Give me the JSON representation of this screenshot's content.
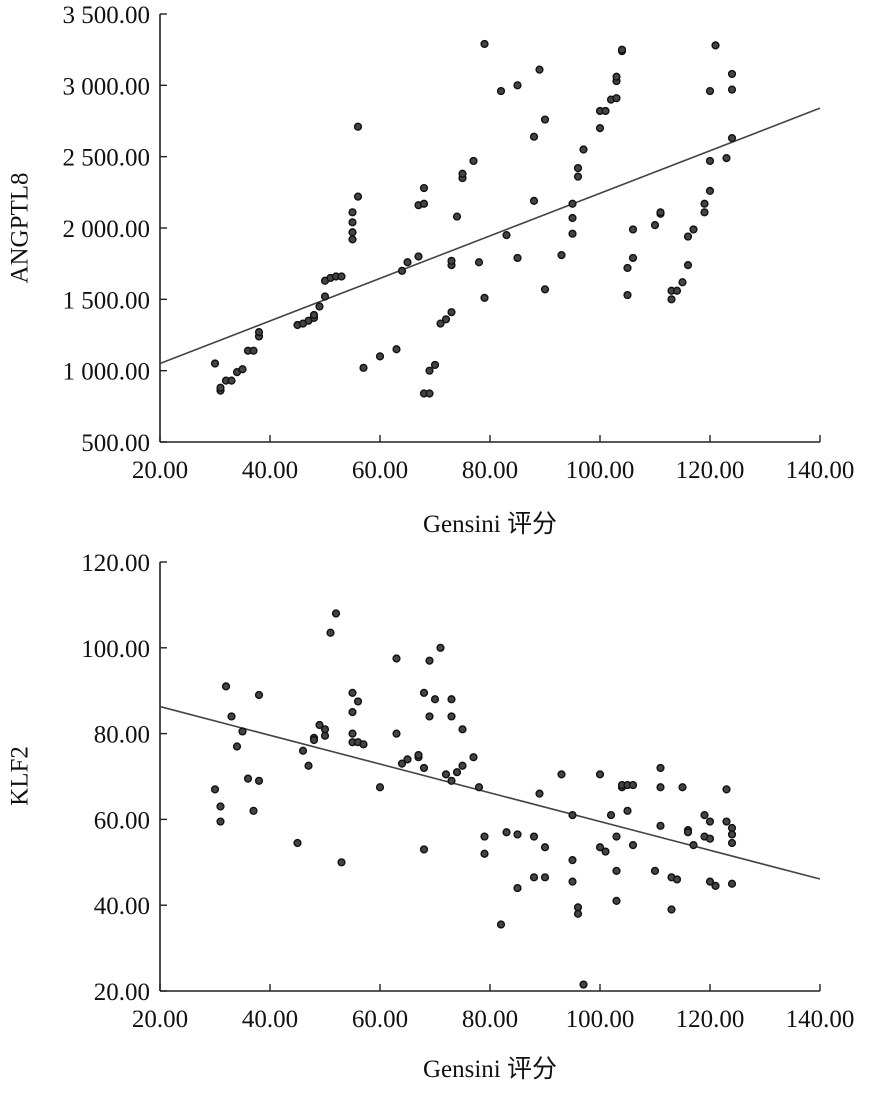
{
  "chart_data": [
    {
      "type": "scatter",
      "title": "",
      "xlabel": "Gensini 评分",
      "ylabel": "ANGPTL8",
      "xlim": [
        20,
        140
      ],
      "ylim": [
        500,
        3500
      ],
      "xticks": [
        20,
        40,
        60,
        80,
        100,
        120,
        140
      ],
      "yticks": [
        500,
        1000,
        1500,
        2000,
        2500,
        3000,
        3500
      ],
      "xtick_labels": [
        "20.00",
        "40.00",
        "60.00",
        "80.00",
        "100.00",
        "120.00",
        "140.00"
      ],
      "ytick_labels": [
        "500.00",
        "1 000.00",
        "1 500.00",
        "2 000.00",
        "2 500.00",
        "3 000.00",
        "3 500.00"
      ],
      "fit_line": {
        "x": [
          20,
          140
        ],
        "y": [
          1050,
          2840
        ]
      },
      "points": [
        [
          30,
          1050
        ],
        [
          31,
          860
        ],
        [
          31,
          880
        ],
        [
          32,
          930
        ],
        [
          33,
          930
        ],
        [
          34,
          990
        ],
        [
          35,
          1010
        ],
        [
          36,
          1140
        ],
        [
          37,
          1140
        ],
        [
          38,
          1240
        ],
        [
          38,
          1270
        ],
        [
          45,
          1320
        ],
        [
          46,
          1330
        ],
        [
          47,
          1350
        ],
        [
          48,
          1370
        ],
        [
          48,
          1390
        ],
        [
          49,
          1450
        ],
        [
          50,
          1520
        ],
        [
          50,
          1630
        ],
        [
          51,
          1650
        ],
        [
          52,
          1660
        ],
        [
          53,
          1660
        ],
        [
          55,
          1920
        ],
        [
          55,
          1970
        ],
        [
          55,
          2040
        ],
        [
          55,
          2110
        ],
        [
          56,
          2220
        ],
        [
          56,
          2710
        ],
        [
          57,
          1020
        ],
        [
          60,
          1100
        ],
        [
          63,
          1150
        ],
        [
          64,
          1700
        ],
        [
          65,
          1760
        ],
        [
          67,
          1800
        ],
        [
          67,
          2160
        ],
        [
          68,
          2170
        ],
        [
          68,
          2280
        ],
        [
          68,
          840
        ],
        [
          69,
          840
        ],
        [
          69,
          1000
        ],
        [
          70,
          1040
        ],
        [
          71,
          1330
        ],
        [
          72,
          1360
        ],
        [
          73,
          1410
        ],
        [
          73,
          1740
        ],
        [
          73,
          1770
        ],
        [
          74,
          2080
        ],
        [
          75,
          2350
        ],
        [
          75,
          2380
        ],
        [
          77,
          2470
        ],
        [
          78,
          1760
        ],
        [
          79,
          1510
        ],
        [
          79,
          3290
        ],
        [
          82,
          2960
        ],
        [
          83,
          1950
        ],
        [
          85,
          1790
        ],
        [
          85,
          3000
        ],
        [
          88,
          2640
        ],
        [
          88,
          2190
        ],
        [
          89,
          3110
        ],
        [
          90,
          1570
        ],
        [
          90,
          2760
        ],
        [
          93,
          1810
        ],
        [
          95,
          1960
        ],
        [
          95,
          2070
        ],
        [
          95,
          2170
        ],
        [
          96,
          2360
        ],
        [
          96,
          2420
        ],
        [
          97,
          2550
        ],
        [
          100,
          2700
        ],
        [
          100,
          2820
        ],
        [
          101,
          2820
        ],
        [
          102,
          2900
        ],
        [
          103,
          2910
        ],
        [
          103,
          3030
        ],
        [
          103,
          3060
        ],
        [
          104,
          3240
        ],
        [
          104,
          3250
        ],
        [
          105,
          1530
        ],
        [
          105,
          1720
        ],
        [
          106,
          1790
        ],
        [
          106,
          1990
        ],
        [
          110,
          2020
        ],
        [
          111,
          2100
        ],
        [
          111,
          2110
        ],
        [
          113,
          1500
        ],
        [
          113,
          1560
        ],
        [
          114,
          1560
        ],
        [
          115,
          1620
        ],
        [
          116,
          1740
        ],
        [
          116,
          1940
        ],
        [
          117,
          1990
        ],
        [
          119,
          2110
        ],
        [
          119,
          2170
        ],
        [
          120,
          2260
        ],
        [
          120,
          2470
        ],
        [
          120,
          2960
        ],
        [
          121,
          3280
        ],
        [
          123,
          2490
        ],
        [
          124,
          2630
        ],
        [
          124,
          2970
        ],
        [
          124,
          3080
        ]
      ]
    },
    {
      "type": "scatter",
      "title": "",
      "xlabel": "Gensini 评分",
      "ylabel": "KLF2",
      "xlim": [
        20,
        140
      ],
      "ylim": [
        20,
        120
      ],
      "xticks": [
        20,
        40,
        60,
        80,
        100,
        120,
        140
      ],
      "yticks": [
        20,
        40,
        60,
        80,
        100,
        120
      ],
      "xtick_labels": [
        "20.00",
        "40.00",
        "60.00",
        "80.00",
        "100.00",
        "120.00",
        "140.00"
      ],
      "ytick_labels": [
        "20.00",
        "40.00",
        "60.00",
        "80.00",
        "100.00",
        "120.00"
      ],
      "fit_line": {
        "x": [
          20,
          140
        ],
        "y": [
          86.3,
          46.1
        ]
      },
      "points": [
        [
          30,
          67
        ],
        [
          31,
          63
        ],
        [
          31,
          59.5
        ],
        [
          32,
          91
        ],
        [
          33,
          84
        ],
        [
          34,
          77
        ],
        [
          35,
          80.5
        ],
        [
          36,
          69.5
        ],
        [
          37,
          62
        ],
        [
          38,
          89
        ],
        [
          38,
          69
        ],
        [
          45,
          54.5
        ],
        [
          46,
          76
        ],
        [
          47,
          72.5
        ],
        [
          48,
          79
        ],
        [
          48,
          78.5
        ],
        [
          49,
          82
        ],
        [
          50,
          81
        ],
        [
          50,
          79.5
        ],
        [
          51,
          103.5
        ],
        [
          52,
          108
        ],
        [
          53,
          50
        ],
        [
          55,
          89.5
        ],
        [
          55,
          85
        ],
        [
          55,
          80
        ],
        [
          55,
          78
        ],
        [
          56,
          87.5
        ],
        [
          56,
          78
        ],
        [
          57,
          77.5
        ],
        [
          60,
          67.5
        ],
        [
          63,
          97.5
        ],
        [
          63,
          80
        ],
        [
          64,
          73
        ],
        [
          65,
          74
        ],
        [
          67,
          74.5
        ],
        [
          67,
          75
        ],
        [
          68,
          72
        ],
        [
          68,
          89.5
        ],
        [
          68,
          53
        ],
        [
          69,
          97
        ],
        [
          69,
          84
        ],
        [
          70,
          88
        ],
        [
          71,
          100
        ],
        [
          72,
          70.5
        ],
        [
          73,
          69
        ],
        [
          73,
          84
        ],
        [
          73,
          88
        ],
        [
          74,
          71
        ],
        [
          75,
          72.5
        ],
        [
          75,
          81
        ],
        [
          77,
          74.5
        ],
        [
          78,
          67.5
        ],
        [
          79,
          56
        ],
        [
          79,
          52
        ],
        [
          82,
          35.5
        ],
        [
          83,
          57
        ],
        [
          85,
          56.5
        ],
        [
          85,
          44
        ],
        [
          88,
          56
        ],
        [
          88,
          46.5
        ],
        [
          89,
          66
        ],
        [
          90,
          46.5
        ],
        [
          90,
          53.5
        ],
        [
          93,
          70.5
        ],
        [
          95,
          61
        ],
        [
          95,
          50.5
        ],
        [
          95,
          45.5
        ],
        [
          96,
          39.5
        ],
        [
          96,
          38
        ],
        [
          97,
          21.5
        ],
        [
          100,
          70.5
        ],
        [
          100,
          53.5
        ],
        [
          101,
          52.5
        ],
        [
          102,
          61
        ],
        [
          103,
          56
        ],
        [
          103,
          48
        ],
        [
          103,
          41
        ],
        [
          104,
          67.5
        ],
        [
          104,
          68
        ],
        [
          105,
          62
        ],
        [
          105,
          68
        ],
        [
          106,
          68
        ],
        [
          106,
          54
        ],
        [
          110,
          48
        ],
        [
          111,
          72
        ],
        [
          111,
          67.5
        ],
        [
          111,
          58.5
        ],
        [
          113,
          39
        ],
        [
          113,
          46.5
        ],
        [
          114,
          46
        ],
        [
          115,
          67.5
        ],
        [
          116,
          57.5
        ],
        [
          116,
          57
        ],
        [
          117,
          54
        ],
        [
          119,
          61
        ],
        [
          119,
          56
        ],
        [
          120,
          55.5
        ],
        [
          120,
          59.5
        ],
        [
          120,
          45.5
        ],
        [
          121,
          44.5
        ],
        [
          123,
          67
        ],
        [
          123,
          59.5
        ],
        [
          124,
          58
        ],
        [
          124,
          56.5
        ],
        [
          124,
          54.5
        ],
        [
          124,
          45
        ]
      ]
    }
  ]
}
